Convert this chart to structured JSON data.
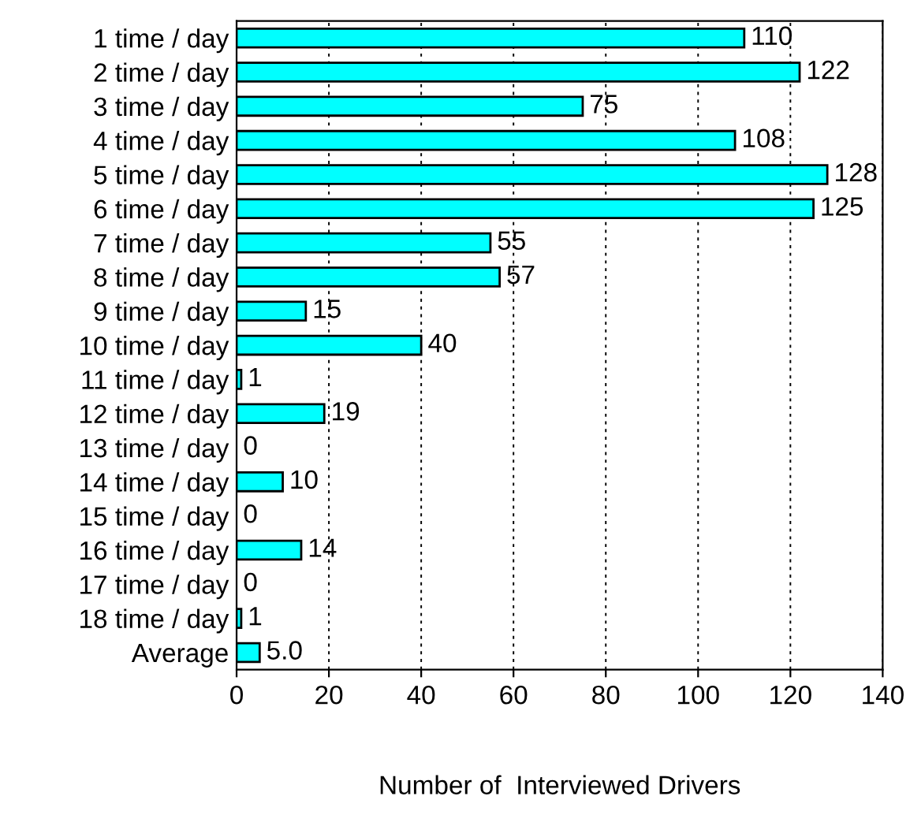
{
  "chart_data": {
    "type": "bar",
    "orientation": "horizontal",
    "xlabel": "Number of  Interviewed Drivers",
    "categories": [
      "1 time / day",
      "2 time / day",
      "3 time / day",
      "4 time / day",
      "5 time / day",
      "6 time / day",
      "7 time / day",
      "8 time / day",
      "9 time / day",
      "10 time / day",
      "11 time / day",
      "12 time / day",
      "13 time / day",
      "14 time / day",
      "15 time / day",
      "16 time / day",
      "17 time / day",
      "18 time / day",
      "Average"
    ],
    "values": [
      110,
      122,
      75,
      108,
      128,
      125,
      55,
      57,
      15,
      40,
      1,
      19,
      0,
      10,
      0,
      14,
      0,
      1,
      5.0
    ],
    "value_labels": [
      "110",
      "122",
      "75",
      "108",
      "128",
      "125",
      "55",
      "57",
      "15",
      "40",
      "1",
      "19",
      "0",
      "10",
      "0",
      "14",
      "0",
      "1",
      "5.0"
    ],
    "color": "#00ffff",
    "xlim": [
      0,
      140
    ],
    "xticks": [
      0,
      20,
      40,
      60,
      80,
      100,
      120,
      140
    ],
    "grid": "x",
    "legend": false
  }
}
